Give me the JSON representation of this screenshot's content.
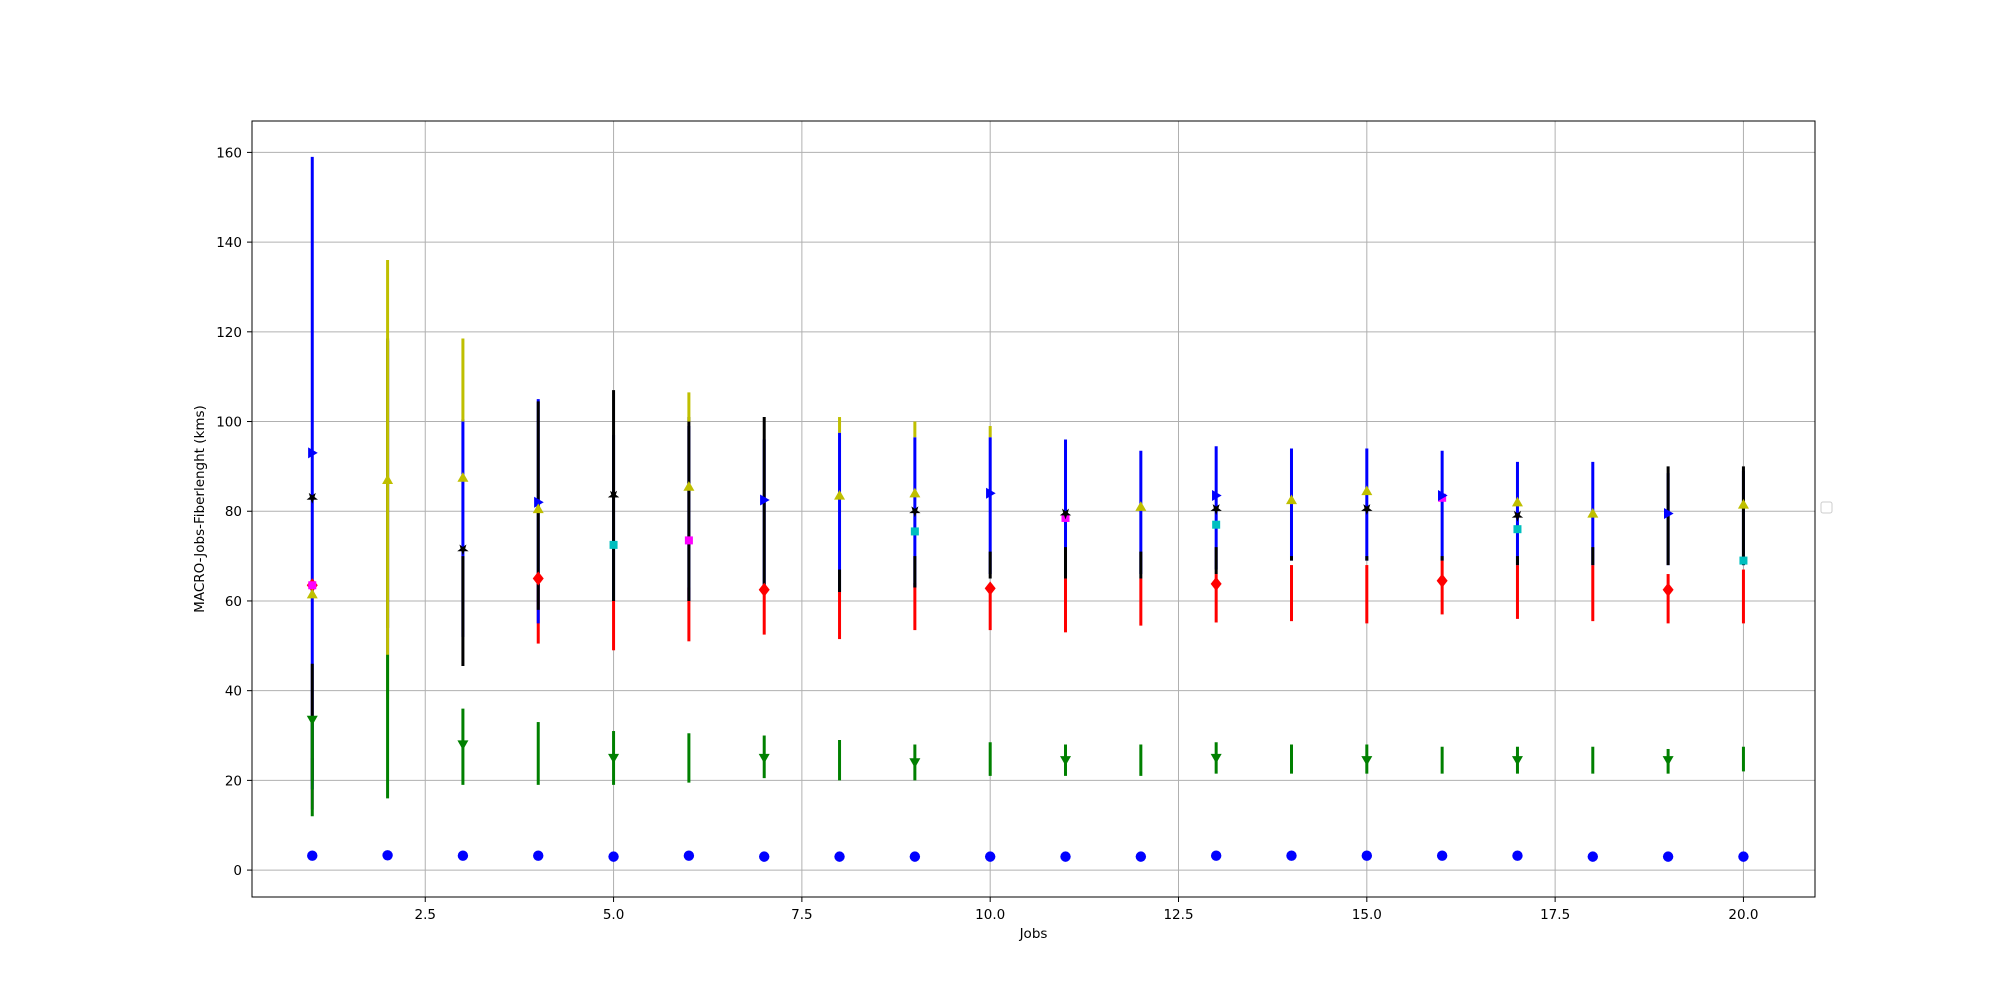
{
  "chart_data": {
    "type": "scatter",
    "title": "",
    "xlabel": "Jobs",
    "ylabel": "MACRO-Jobs-Fiberlenght (kms)",
    "xlim": [
      0.2,
      20.95
    ],
    "ylim": [
      -6,
      167
    ],
    "xticks": [
      2.5,
      5.0,
      7.5,
      10.0,
      12.5,
      15.0,
      17.5,
      20.0
    ],
    "xtick_labels": [
      "2.5",
      "5.0",
      "7.5",
      "10.0",
      "12.5",
      "15.0",
      "17.5",
      "20.0"
    ],
    "yticks": [
      0,
      20,
      40,
      60,
      80,
      100,
      120,
      140,
      160
    ],
    "ytick_labels": [
      "0",
      "20",
      "40",
      "60",
      "80",
      "100",
      "120",
      "140",
      "160"
    ],
    "grid": true,
    "legend": "center-right (empty)",
    "x": [
      1,
      2,
      3,
      4,
      5,
      6,
      7,
      8,
      9,
      10,
      11,
      12,
      13,
      14,
      15,
      16,
      17,
      18,
      19,
      20
    ],
    "series": [
      {
        "color": "#ff0000",
        "marker": "diamond",
        "values": [
          63.5,
          null,
          null,
          65,
          null,
          null,
          62.5,
          null,
          null,
          62.8,
          null,
          null,
          63.8,
          null,
          null,
          64.5,
          null,
          null,
          62.5,
          null
        ],
        "err_low": [
          null,
          null,
          null,
          50.5,
          49,
          51,
          52.5,
          51.5,
          53.5,
          53.5,
          53,
          54.5,
          55.2,
          55.5,
          55,
          57,
          56,
          55.5,
          55,
          55
        ],
        "err_high": [
          null,
          null,
          null,
          64,
          60,
          63,
          63,
          62,
          64,
          62,
          65,
          65,
          66,
          68,
          68,
          69,
          68,
          68,
          66,
          67
        ]
      },
      {
        "color": "#ff00ff",
        "marker": "square",
        "values": [
          63.5,
          null,
          null,
          null,
          null,
          73.5,
          null,
          null,
          null,
          null,
          78.5,
          null,
          null,
          null,
          null,
          83,
          null,
          null,
          null,
          null
        ],
        "err_low": [
          13.5,
          null,
          null,
          null,
          null,
          null,
          null,
          null,
          null,
          null,
          null,
          null,
          null,
          null,
          null,
          null,
          null,
          null,
          null,
          null
        ],
        "err_high": [
          25,
          null,
          null,
          null,
          null,
          null,
          null,
          null,
          null,
          null,
          null,
          null,
          null,
          null,
          null,
          null,
          null,
          null,
          null,
          null
        ]
      },
      {
        "color": "#00bfbf",
        "marker": "square",
        "values": [
          null,
          null,
          null,
          null,
          72.5,
          null,
          null,
          null,
          75.5,
          null,
          null,
          null,
          77,
          null,
          null,
          null,
          76,
          null,
          null,
          69
        ],
        "err_low": [
          null,
          null,
          null,
          null,
          null,
          null,
          null,
          null,
          null,
          null,
          null,
          null,
          null,
          null,
          null,
          null,
          null,
          null,
          null,
          null
        ],
        "err_high": [
          null,
          null,
          null,
          null,
          null,
          null,
          null,
          null,
          null,
          null,
          null,
          null,
          null,
          null,
          null,
          null,
          null,
          null,
          null,
          null
        ]
      },
      {
        "color": "#0000ff",
        "marker": "triangle-right",
        "values": [
          93,
          null,
          null,
          82,
          null,
          null,
          82.5,
          null,
          null,
          84,
          null,
          null,
          83.5,
          null,
          null,
          83.5,
          null,
          null,
          79.5,
          null
        ],
        "err_low": [
          18,
          48,
          52,
          55,
          60,
          60,
          62,
          62,
          63,
          66,
          66,
          66,
          67,
          69,
          69,
          69,
          68,
          68,
          68,
          68
        ],
        "err_high": [
          159,
          118,
          100.5,
          105,
          97,
          99,
          96,
          97.5,
          96.5,
          96.5,
          96,
          93.5,
          94.5,
          94,
          94,
          93.5,
          91,
          91,
          88.5,
          89
        ]
      },
      {
        "color": "#000000",
        "marker": "star",
        "values": [
          83,
          null,
          71.5,
          null,
          83.5,
          null,
          null,
          null,
          80,
          null,
          79.5,
          null,
          80.5,
          null,
          80.5,
          null,
          79,
          null,
          null,
          null
        ],
        "err_low": [
          20,
          54,
          45.5,
          58,
          60,
          60,
          62,
          62,
          63,
          65,
          65,
          65,
          66,
          69,
          69,
          69,
          68,
          68,
          68,
          68
        ],
        "err_high": [
          46,
          118.5,
          70,
          104.5,
          107,
          101,
          101,
          67,
          70,
          71,
          72,
          71,
          72,
          70,
          70,
          70,
          70,
          72,
          90,
          90
        ]
      },
      {
        "color": "#bfbf00",
        "marker": "triangle-up",
        "values": [
          61.5,
          87,
          87.5,
          80.5,
          null,
          85.5,
          null,
          83.5,
          84,
          null,
          null,
          81,
          null,
          82.5,
          84.5,
          null,
          82,
          79.5,
          null,
          81.5
        ],
        "err_low": [
          null,
          38,
          100,
          null,
          null,
          100,
          null,
          97.5,
          96.5,
          96.5,
          null,
          null,
          null,
          null,
          null,
          null,
          null,
          null,
          null,
          null
        ],
        "err_high": [
          null,
          136,
          118.5,
          null,
          null,
          106.5,
          null,
          101,
          100,
          99,
          null,
          94.5,
          null,
          95.5,
          96.5,
          96,
          93,
          null,
          null,
          92.5
        ]
      },
      {
        "color": "#008000",
        "marker": "triangle-down",
        "values": [
          33.5,
          null,
          28,
          null,
          25,
          null,
          25,
          null,
          24,
          null,
          24.5,
          null,
          25,
          null,
          24.5,
          null,
          24.5,
          null,
          24.5,
          null
        ],
        "err_low": [
          12,
          16,
          19,
          19,
          19,
          19.5,
          20.5,
          20,
          20,
          21,
          21,
          21,
          21.5,
          21.5,
          21.5,
          21.5,
          21.5,
          21.5,
          21.5,
          22
        ],
        "err_high": [
          33,
          48,
          36,
          33,
          31,
          30.5,
          30,
          29,
          28,
          28.5,
          28,
          28,
          28.5,
          28,
          28,
          27.5,
          27.5,
          27.5,
          27,
          27.5
        ]
      },
      {
        "color": "#0000ff",
        "marker": "circle",
        "values": [
          3.2,
          3.3,
          3.2,
          3.2,
          3.0,
          3.2,
          3.0,
          3.0,
          3.0,
          3.0,
          3.0,
          3.0,
          3.2,
          3.2,
          3.2,
          3.2,
          3.2,
          3.0,
          3.0,
          3.0
        ],
        "err_low": [
          null,
          null,
          null,
          null,
          null,
          null,
          null,
          null,
          null,
          null,
          null,
          null,
          null,
          null,
          null,
          null,
          null,
          null,
          null,
          null
        ],
        "err_high": [
          null,
          null,
          null,
          null,
          null,
          null,
          null,
          null,
          null,
          null,
          null,
          null,
          null,
          null,
          null,
          null,
          null,
          null,
          null,
          null
        ]
      }
    ]
  }
}
